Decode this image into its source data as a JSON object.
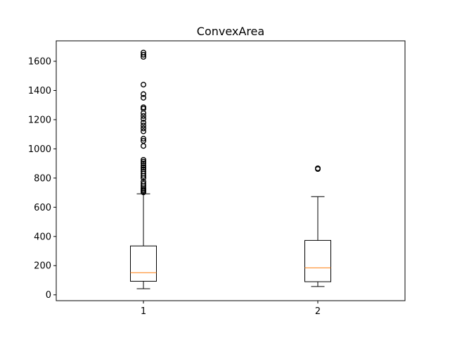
{
  "chart_data": {
    "type": "box",
    "title": "ConvexArea",
    "xlabel": "",
    "ylabel": "",
    "xlim": [
      0.5,
      2.5
    ],
    "ylim": [
      -40,
      1740
    ],
    "categories": [
      "1",
      "2"
    ],
    "yticks": [
      0,
      200,
      400,
      600,
      800,
      1000,
      1200,
      1400,
      1600
    ],
    "grid": false,
    "colors": {
      "box": "#000000",
      "median": "#ff7f0e",
      "flier": "#000000"
    },
    "boxes": [
      {
        "category": "1",
        "whisker_low": 42,
        "q1": 93,
        "median": 152,
        "q3": 335,
        "whisker_high": 692,
        "fliers": [
          702,
          712,
          720,
          730,
          745,
          760,
          775,
          800,
          815,
          830,
          845,
          860,
          872,
          885,
          900,
          912,
          925,
          1020,
          1055,
          1070,
          1120,
          1140,
          1160,
          1180,
          1205,
          1225,
          1245,
          1275,
          1285,
          1350,
          1375,
          1440,
          1630,
          1645,
          1660
        ]
      },
      {
        "category": "2",
        "whisker_low": 57,
        "q1": 90,
        "median": 185,
        "q3": 373,
        "whisker_high": 673,
        "fliers": [
          862,
          867
        ]
      }
    ]
  }
}
